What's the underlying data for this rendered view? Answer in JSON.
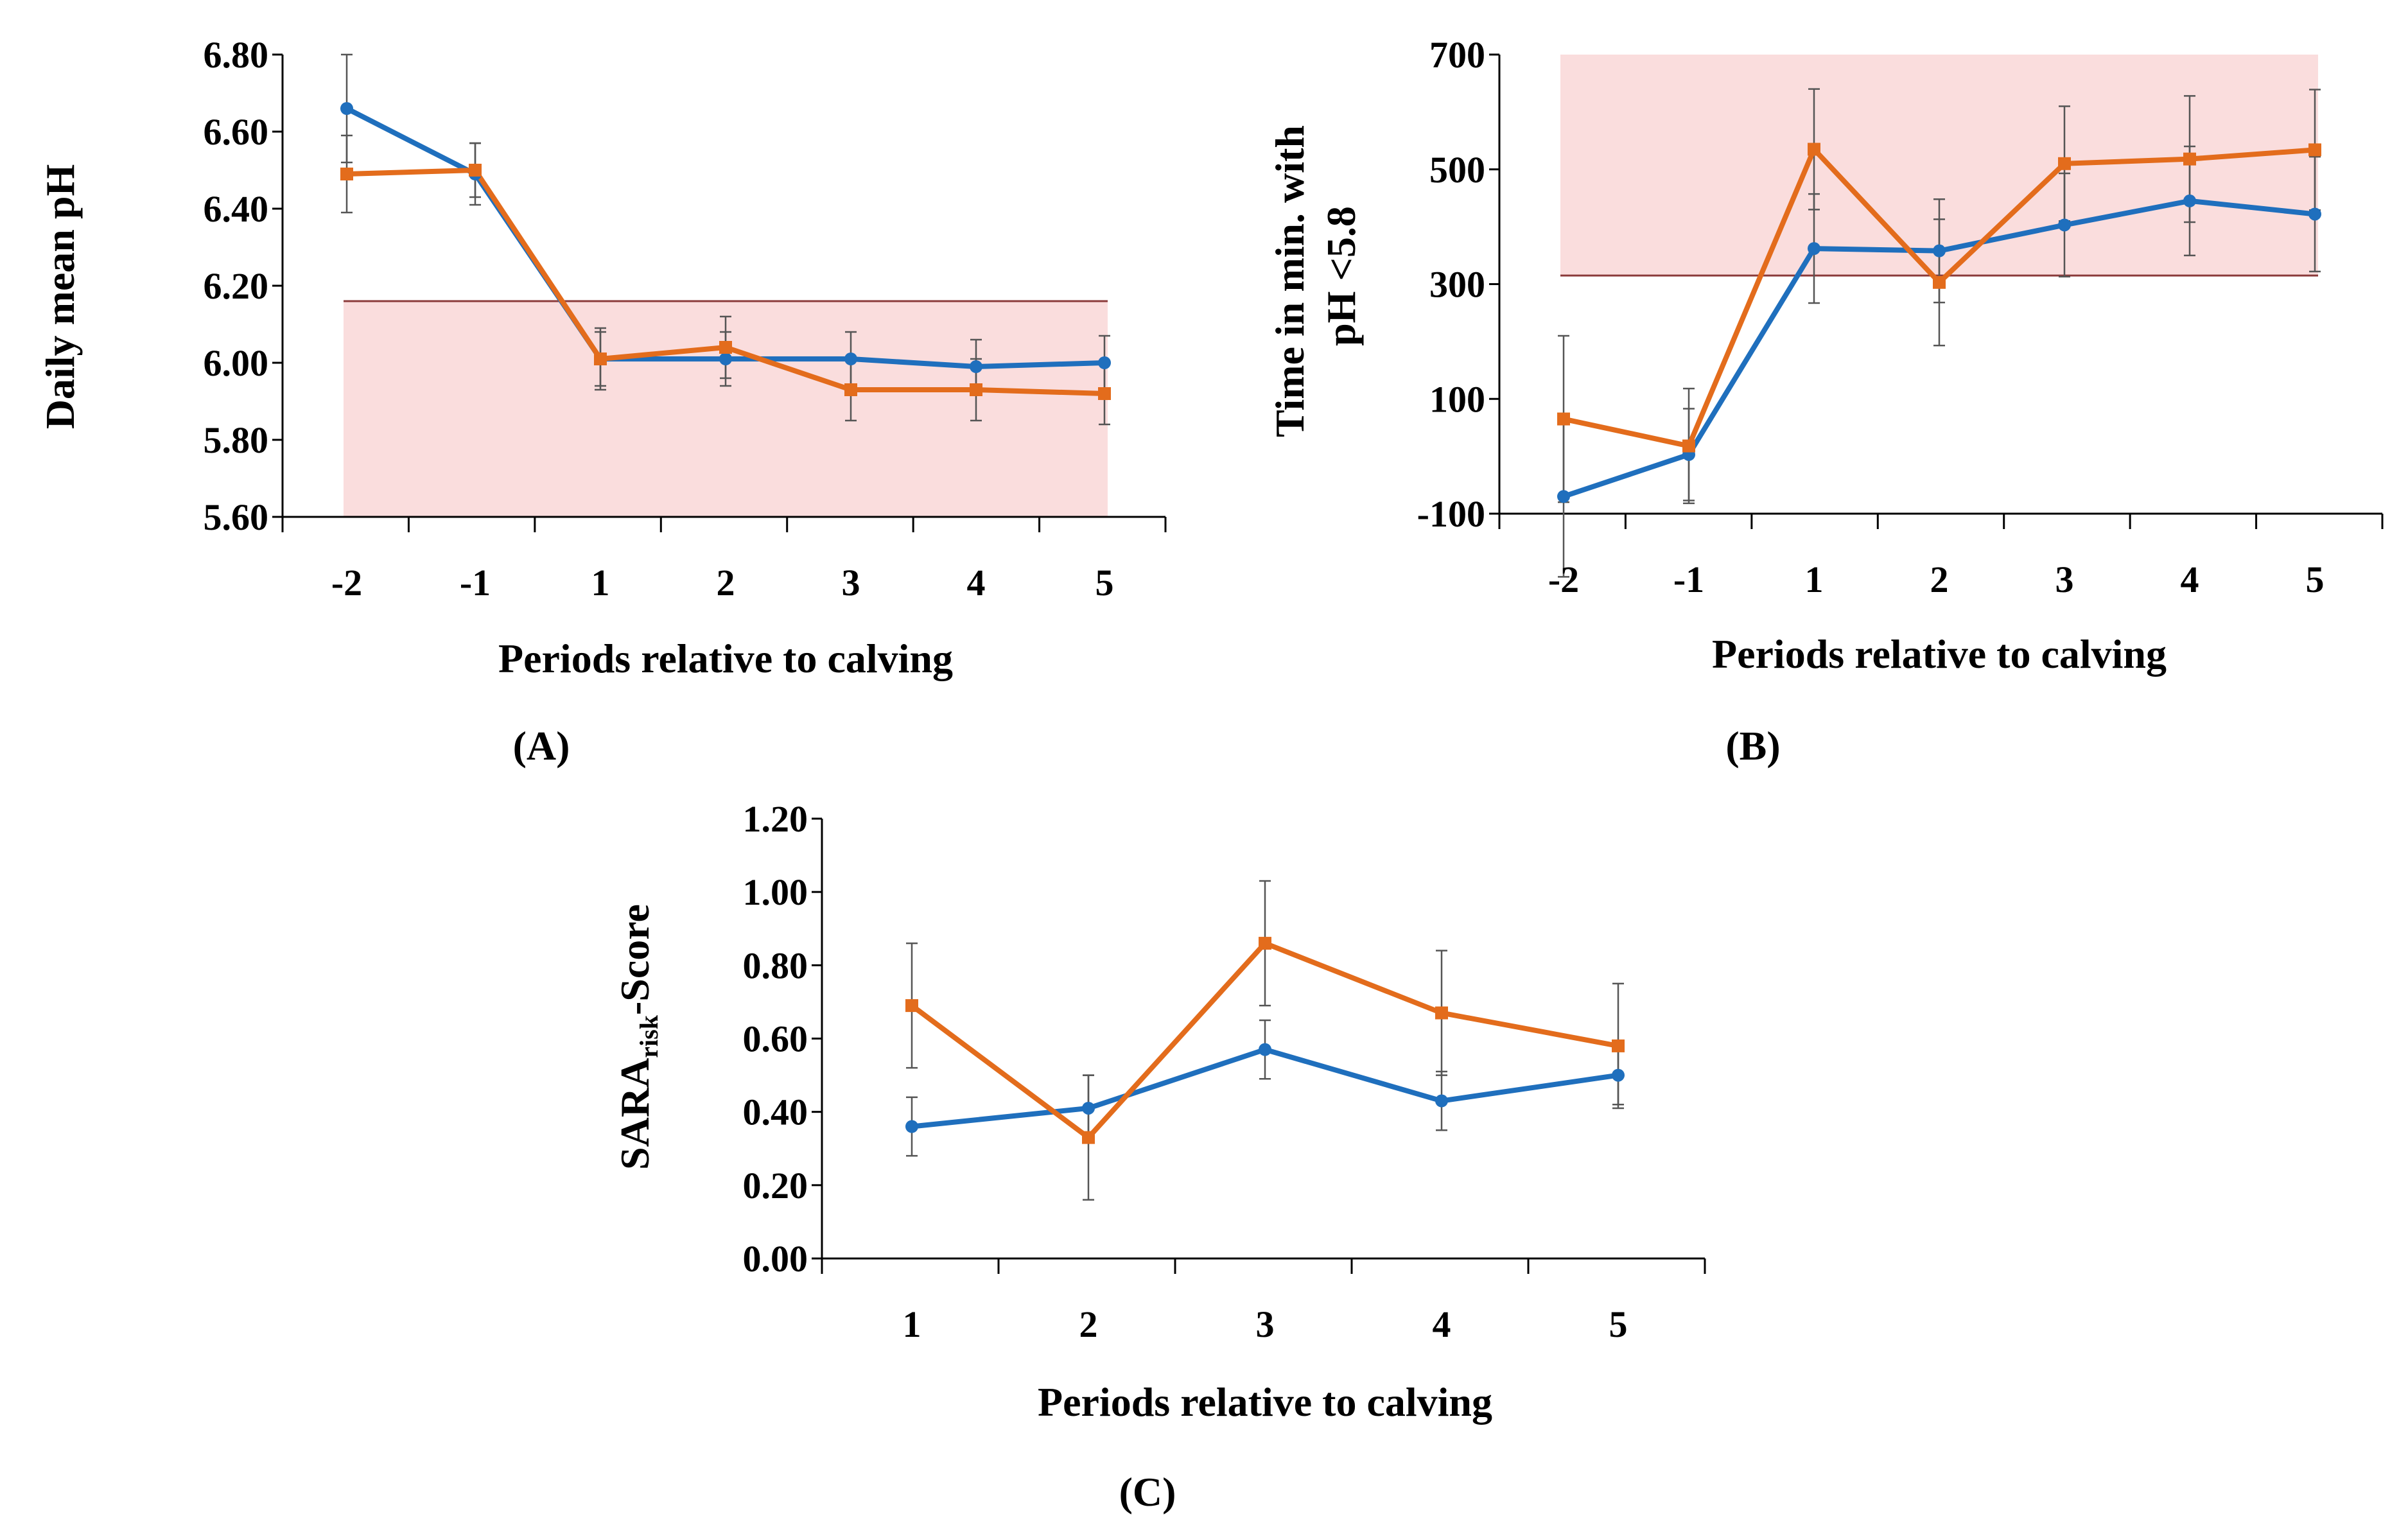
{
  "colors": {
    "blue": "#1f6fbd",
    "orange": "#e36c1c",
    "band_fill": "#fadddd",
    "band_line": "#8b3a3a",
    "error_bar": "#555555",
    "axis": "#000000"
  },
  "chart_data": [
    {
      "panel_label": "(A)",
      "type": "line",
      "title": "",
      "xlabel": "Periods relative to calving",
      "ylabel": "Daily mean pH",
      "categories": [
        "-2",
        "-1",
        "1",
        "2",
        "3",
        "4",
        "5"
      ],
      "ylim": [
        5.6,
        6.8
      ],
      "yticks": [
        "5.60",
        "5.80",
        "6.00",
        "6.20",
        "6.40",
        "6.60",
        "6.80"
      ],
      "threshold_band": {
        "from": 5.6,
        "to": 6.16
      },
      "series": [
        {
          "name": "series 1",
          "color": "blue",
          "marker": "circle",
          "values": [
            6.66,
            6.49,
            6.01,
            6.01,
            6.01,
            5.99,
            6.0
          ],
          "errors": [
            0.14,
            0.08,
            0.07,
            0.07,
            0.07,
            0.07,
            0.07
          ]
        },
        {
          "name": "series 2",
          "color": "orange",
          "marker": "square",
          "values": [
            6.49,
            6.5,
            6.01,
            6.04,
            5.93,
            5.93,
            5.92
          ],
          "errors": [
            0.1,
            0.07,
            0.08,
            0.08,
            0.08,
            0.08,
            0.08
          ]
        }
      ]
    },
    {
      "panel_label": "(B)",
      "type": "line",
      "title": "",
      "xlabel": "Periods relative to calving",
      "ylabel": "Time in min. with pH <5.8",
      "ylabel_lines": [
        "Time in min. with",
        "pH <5.8"
      ],
      "categories": [
        "-2",
        "-1",
        "1",
        "2",
        "3",
        "4",
        "5"
      ],
      "ylim": [
        -100,
        700
      ],
      "yticks": [
        "-100",
        "100",
        "300",
        "500",
        "700"
      ],
      "threshold_band": {
        "from": 315,
        "to": 700
      },
      "series": [
        {
          "name": "series 1",
          "color": "blue",
          "marker": "circle",
          "values": [
            -70,
            3,
            362,
            358,
            403,
            445,
            422
          ],
          "errors": [
            140,
            80,
            95,
            90,
            90,
            95,
            100
          ]
        },
        {
          "name": "series 2",
          "color": "orange",
          "marker": "square",
          "values": [
            65,
            18,
            535,
            303,
            510,
            518,
            534
          ],
          "errors": [
            145,
            100,
            105,
            110,
            100,
            110,
            105
          ]
        }
      ]
    },
    {
      "panel_label": "(C)",
      "type": "line",
      "title": "",
      "xlabel": "Periods  relative to calving",
      "ylabel": "SARA-risk-Score",
      "ylabel_main": "SARA",
      "ylabel_sub": "risk",
      "ylabel_tail": "-Score",
      "categories": [
        "1",
        "2",
        "3",
        "4",
        "5"
      ],
      "ylim": [
        0.0,
        1.2
      ],
      "yticks": [
        "0.00",
        "0.20",
        "0.40",
        "0.60",
        "0.80",
        "1.00",
        "1.20"
      ],
      "series": [
        {
          "name": "series 1",
          "color": "blue",
          "marker": "circle",
          "values": [
            0.36,
            0.41,
            0.57,
            0.43,
            0.5
          ],
          "errors": [
            0.08,
            0.09,
            0.08,
            0.08,
            0.08
          ]
        },
        {
          "name": "series 2",
          "color": "orange",
          "marker": "square",
          "values": [
            0.69,
            0.33,
            0.86,
            0.67,
            0.58
          ],
          "errors": [
            0.17,
            0.17,
            0.17,
            0.17,
            0.17
          ]
        }
      ]
    }
  ]
}
